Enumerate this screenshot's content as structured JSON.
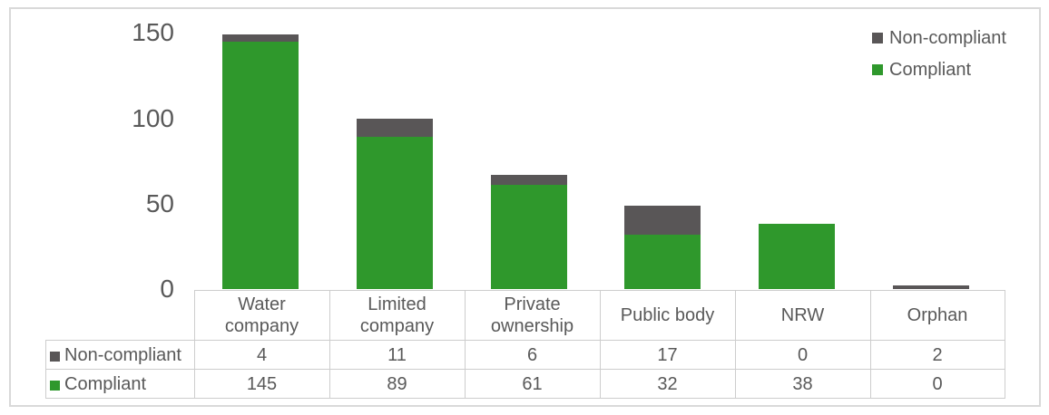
{
  "chart_data": {
    "type": "bar",
    "stacked": true,
    "title": "",
    "xlabel": "",
    "ylabel": "",
    "grid": false,
    "legend_position": "top-right",
    "ylim": [
      0,
      150
    ],
    "yticks": [
      0,
      50,
      100,
      150
    ],
    "categories": [
      "Water company",
      "Limited company",
      "Private ownership",
      "Public body",
      "NRW",
      "Orphan"
    ],
    "series": [
      {
        "name": "Non-compliant",
        "color": "#595657",
        "values": [
          4,
          11,
          6,
          17,
          0,
          2
        ]
      },
      {
        "name": "Compliant",
        "color": "#2f982c",
        "values": [
          145,
          89,
          61,
          32,
          38,
          0
        ]
      }
    ]
  },
  "legend": {
    "items": [
      {
        "label": "Non-compliant",
        "color": "#595657"
      },
      {
        "label": "Compliant",
        "color": "#2f982c"
      }
    ]
  },
  "table": {
    "column_headers": [
      [
        "Water",
        "company"
      ],
      [
        "Limited",
        "company"
      ],
      [
        "Private",
        "ownership"
      ],
      [
        "Public body"
      ],
      [
        "NRW"
      ],
      [
        "Orphan"
      ]
    ],
    "rows": [
      {
        "label": "Non-compliant",
        "color": "#595657",
        "values": [
          "4",
          "11",
          "6",
          "17",
          "0",
          "2"
        ]
      },
      {
        "label": "Compliant",
        "color": "#2f982c",
        "values": [
          "145",
          "89",
          "61",
          "32",
          "38",
          "0"
        ]
      }
    ]
  },
  "colors": {
    "frame_border": "#d9d9d9",
    "table_border": "#cdcdcd",
    "text": "#595959"
  }
}
